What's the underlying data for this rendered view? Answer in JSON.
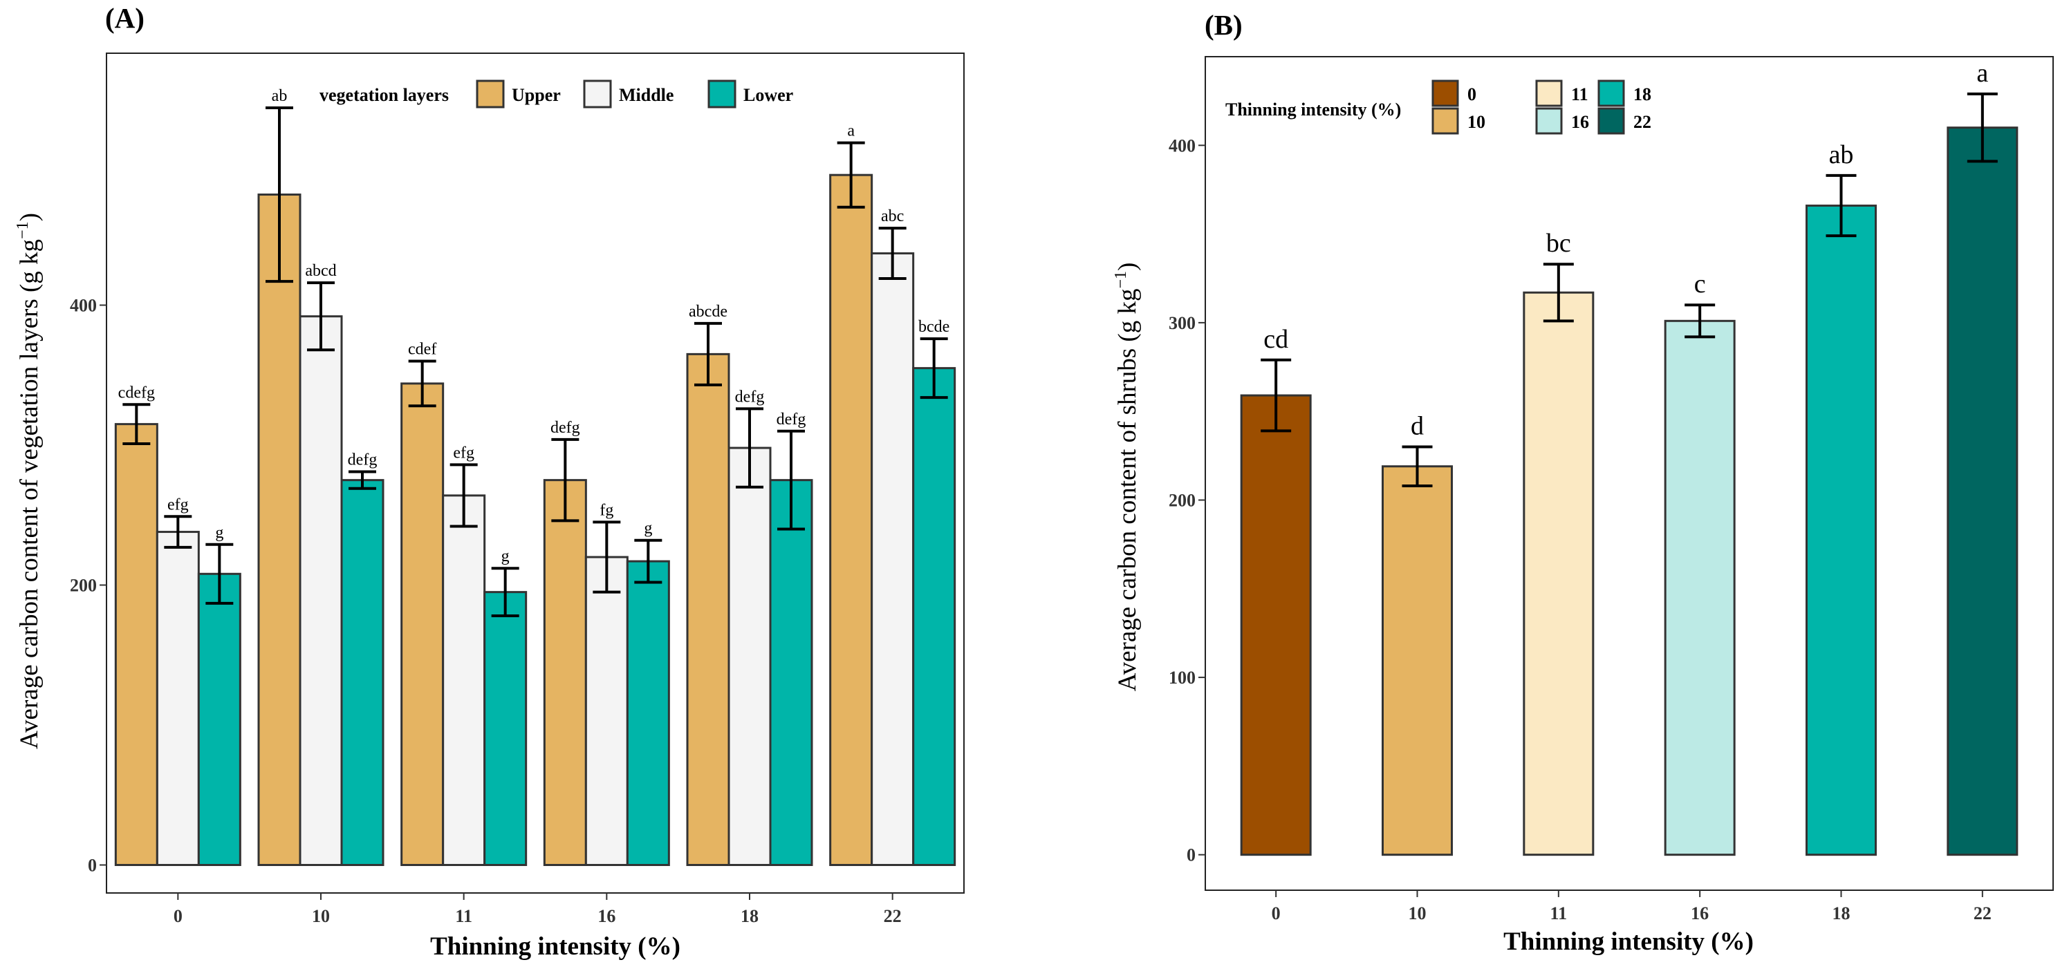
{
  "chart_data": [
    {
      "type": "bar",
      "panel_label": "(A)",
      "title": "",
      "xlabel": "Thinning intensity (%)",
      "ylabel": "Average carbon content of vegetation layers (g kg",
      "ylabel_sup": "−1",
      "ylabel_end": ")",
      "categories": [
        "0",
        "10",
        "11",
        "16",
        "18",
        "22"
      ],
      "ylim": [
        -20,
        580
      ],
      "yticks": [
        0,
        200,
        400
      ],
      "legend": {
        "title": "vegetation layers",
        "position": "top",
        "entries": [
          "Upper",
          "Middle",
          "Lower"
        ]
      },
      "series": [
        {
          "name": "Upper",
          "color": "#E5B462",
          "values": [
            315,
            479,
            344,
            275,
            365,
            493
          ],
          "errors": [
            14,
            62,
            16,
            29,
            22,
            23
          ],
          "labels": [
            "cdefg",
            "ab",
            "cdef",
            "defg",
            "abcde",
            "a"
          ]
        },
        {
          "name": "Middle",
          "color": "#F4F4F4",
          "values": [
            238,
            392,
            264,
            220,
            298,
            437
          ],
          "errors": [
            11,
            24,
            22,
            25,
            28,
            18
          ],
          "labels": [
            "efg",
            "abcd",
            "efg",
            "fg",
            "defg",
            "abc"
          ]
        },
        {
          "name": "Lower",
          "color": "#00B5A9",
          "values": [
            208,
            275,
            195,
            217,
            275,
            355
          ],
          "errors": [
            21,
            6,
            17,
            15,
            35,
            21
          ],
          "labels": [
            "g",
            "defg",
            "g",
            "g",
            "defg",
            "bcde"
          ]
        }
      ]
    },
    {
      "type": "bar",
      "panel_label": "(B)",
      "title": "",
      "xlabel": "Thinning intensity (%)",
      "ylabel": "Average carbon content of shrubs (g kg",
      "ylabel_sup": "−1",
      "ylabel_end": ")",
      "categories": [
        "0",
        "10",
        "11",
        "16",
        "18",
        "22"
      ],
      "ylim": [
        -20,
        450
      ],
      "yticks": [
        0,
        100,
        200,
        300,
        400
      ],
      "values": [
        259,
        219,
        317,
        301,
        366,
        410
      ],
      "errors": [
        20,
        11,
        16,
        9,
        17,
        19
      ],
      "labels": [
        "cd",
        "d",
        "bc",
        "c",
        "ab",
        "a"
      ],
      "colors": [
        "#9C4E00",
        "#E5B462",
        "#FBE9C3",
        "#BCEAE5",
        "#00B5A9",
        "#006660"
      ],
      "legend": {
        "title": "Thinning intensity (%)",
        "position": "top-left",
        "entries": [
          "0",
          "10",
          "11",
          "16",
          "18",
          "22"
        ]
      }
    }
  ]
}
